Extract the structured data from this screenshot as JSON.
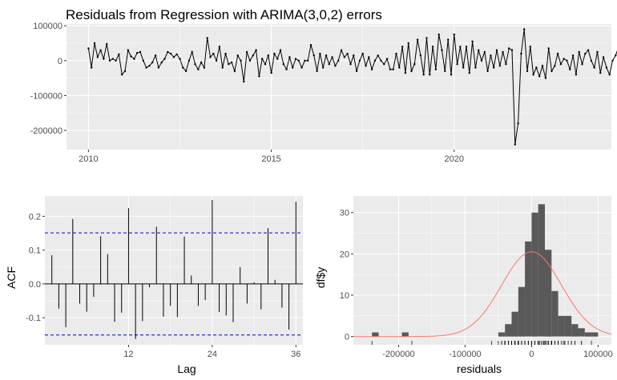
{
  "chart_data": [
    {
      "type": "line",
      "title": "Residuals from Regression with ARIMA(3,0,2) errors",
      "xlabel": "",
      "ylabel": "",
      "xlim": [
        2009.4,
        2024.3
      ],
      "ylim": [
        -255000,
        105000
      ],
      "x_ticks": [
        2010,
        2015,
        2020
      ],
      "y_ticks": [
        100000,
        0,
        -100000,
        -200000
      ],
      "x_tick_labels": [
        "2010",
        "2015",
        "2020"
      ],
      "y_tick_labels": [
        "100000",
        "0",
        "-100000",
        "-200000"
      ],
      "start": 2010,
      "frequency": 12,
      "values": [
        35000,
        -20000,
        50000,
        10000,
        30000,
        5000,
        48000,
        0,
        5000,
        0,
        18000,
        -40000,
        -30000,
        30000,
        12000,
        5000,
        22000,
        25000,
        0,
        -20000,
        -15000,
        -5000,
        15000,
        -20000,
        -5000,
        5000,
        25000,
        20000,
        10000,
        18000,
        5000,
        -20000,
        -30000,
        0,
        25000,
        -10000,
        -25000,
        -5000,
        -20000,
        65000,
        10000,
        20000,
        0,
        40000,
        -20000,
        20000,
        -10000,
        -5000,
        -30000,
        15000,
        0,
        -60000,
        25000,
        0,
        15000,
        30000,
        -45000,
        5000,
        -10000,
        15000,
        -35000,
        20000,
        5000,
        30000,
        -10000,
        -25000,
        10000,
        -20000,
        5000,
        0,
        -20000,
        0,
        0,
        45000,
        15000,
        -30000,
        20000,
        -20000,
        15000,
        -10000,
        10000,
        -15000,
        0,
        30000,
        10000,
        20000,
        -10000,
        15000,
        -30000,
        0,
        20000,
        -15000,
        10000,
        -25000,
        0,
        15000,
        0,
        -10000,
        5000,
        -25000,
        -25000,
        20000,
        -20000,
        40000,
        -35000,
        50000,
        -30000,
        -10000,
        60000,
        15000,
        -40000,
        65000,
        -40000,
        40000,
        -25000,
        75000,
        30000,
        -30000,
        60000,
        -40000,
        75000,
        -10000,
        40000,
        -20000,
        40000,
        -35000,
        55000,
        -20000,
        30000,
        0,
        25000,
        -30000,
        15000,
        -20000,
        30000,
        -15000,
        25000,
        -10000,
        35000,
        30000,
        -240000,
        -180000,
        20000,
        90000,
        -30000,
        40000,
        -40000,
        -20000,
        -45000,
        -15000,
        -50000,
        35000,
        -30000,
        -15000,
        20000,
        -10000,
        5000,
        0,
        -25000,
        15000,
        -40000,
        25000,
        -10000,
        20000,
        30000,
        0,
        -20000,
        25000,
        -35000,
        10000,
        -20000,
        -40000,
        0,
        15000,
        40000,
        20000,
        10000,
        25000,
        15000,
        -25000,
        -10000,
        20000,
        -15000,
        5000,
        -10000,
        0
      ]
    },
    {
      "type": "bar",
      "title": "",
      "xlabel": "Lag",
      "ylabel": "ACF",
      "xlim": [
        0,
        37
      ],
      "ylim": [
        -0.18,
        0.26
      ],
      "x_ticks": [
        12,
        24,
        36
      ],
      "y_ticks": [
        0.2,
        0.1,
        0.0,
        -0.1
      ],
      "x_tick_labels": [
        "12",
        "24",
        "36"
      ],
      "y_tick_labels": [
        "0.2",
        "0.1",
        "0.0",
        "-0.1"
      ],
      "lags": [
        1,
        2,
        3,
        4,
        5,
        6,
        7,
        8,
        9,
        10,
        11,
        12,
        13,
        14,
        15,
        16,
        17,
        18,
        19,
        20,
        21,
        22,
        23,
        24,
        25,
        26,
        27,
        28,
        29,
        30,
        31,
        32,
        33,
        34,
        35,
        36
      ],
      "values": [
        0.085,
        -0.073,
        -0.128,
        0.192,
        -0.058,
        -0.082,
        -0.038,
        0.141,
        0.088,
        -0.112,
        -0.085,
        0.224,
        -0.163,
        -0.11,
        -0.01,
        0.169,
        -0.097,
        -0.065,
        -0.098,
        0.14,
        0.025,
        -0.065,
        -0.048,
        0.248,
        -0.083,
        -0.093,
        -0.113,
        0.05,
        -0.058,
        0.005,
        -0.075,
        0.165,
        0.012,
        -0.07,
        -0.135,
        0.243
      ],
      "confidence_band": 0.151
    },
    {
      "type": "bar",
      "title": "",
      "xlabel": "residuals",
      "ylabel": "df$y",
      "xlim": [
        -268000,
        120000
      ],
      "ylim": [
        -2,
        34
      ],
      "x_ticks": [
        -200000,
        -100000,
        0,
        100000
      ],
      "y_ticks": [
        0,
        10,
        20,
        30
      ],
      "x_tick_labels": [
        "-200000",
        "-100000",
        "0",
        "100000"
      ],
      "y_tick_labels": [
        "0",
        "10",
        "20",
        "30"
      ],
      "bins": [
        -240000,
        -195000,
        -50000,
        -40000,
        -30000,
        -20000,
        -10000,
        0,
        10000,
        20000,
        30000,
        40000,
        50000,
        60000,
        70000,
        80000,
        90000
      ],
      "bin_width": 10000,
      "counts": [
        1,
        1,
        1,
        3,
        6,
        12,
        23,
        30,
        32,
        21,
        11,
        5,
        5,
        3,
        2,
        1,
        1
      ],
      "density_curve": "normal",
      "normal_sd": 45000,
      "normal_peak": 20.5,
      "colors": {
        "bars": "#595959",
        "curve": "#f8766d",
        "panel": "#ebebeb",
        "acf_band": "#0000cc"
      }
    }
  ]
}
